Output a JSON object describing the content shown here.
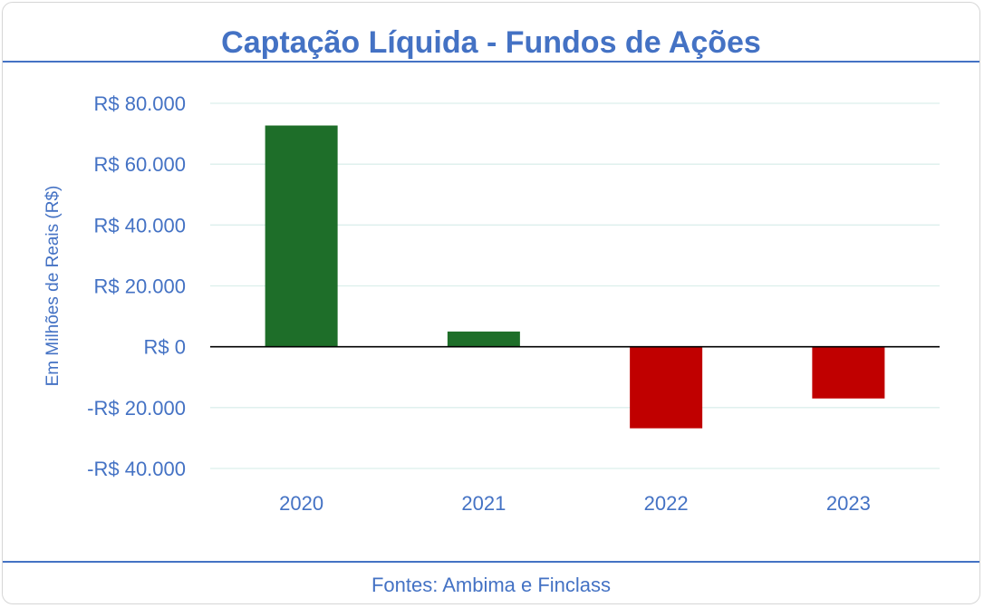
{
  "header": {
    "title": "Captação Líquida - Fundos de Ações"
  },
  "footer": {
    "source": "Fontes: Ambima e Finclass"
  },
  "colors": {
    "accent": "#4472c4",
    "positive": "#1e6e29",
    "negative": "#c00000",
    "grid": "#dcefec",
    "zero_line": "#000000"
  },
  "chart_data": {
    "type": "bar",
    "title": "Captação Líquida - Fundos de Ações",
    "xlabel": "",
    "ylabel": "Em Milhões de Reais (R$)",
    "categories": [
      "2020",
      "2021",
      "2022",
      "2023"
    ],
    "values": [
      72700,
      5000,
      -26800,
      -17000
    ],
    "ylim": [
      -40000,
      80000
    ],
    "yticks": [
      80000,
      60000,
      40000,
      20000,
      0,
      -20000,
      -40000
    ],
    "ytick_labels": [
      "R$ 80.000",
      "R$ 60.000",
      "R$ 40.000",
      "R$ 20.000",
      "R$ 0",
      "-R$ 20.000",
      "-R$ 40.000"
    ],
    "grid": true,
    "legend": "none"
  }
}
